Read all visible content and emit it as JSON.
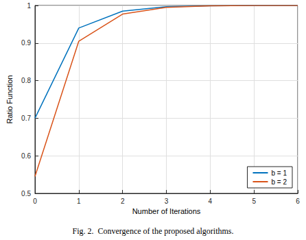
{
  "chart_data": {
    "type": "line",
    "title": "Fig. 2.  Convergence of the proposed algorithms.",
    "x_label": "Number of Iterations",
    "y_label": "Ratio Function",
    "x": [
      0,
      1,
      2,
      3,
      4,
      5,
      6
    ],
    "series": [
      {
        "name": "b = 1",
        "color": "#0072bd",
        "values": [
          0.7,
          0.94,
          0.985,
          0.997,
          0.999,
          1.0,
          1.0
        ]
      },
      {
        "name": "b = 2",
        "color": "#d95319",
        "values": [
          0.545,
          0.905,
          0.977,
          0.995,
          0.999,
          1.0,
          1.0
        ]
      }
    ],
    "xlim": [
      0,
      6
    ],
    "xticks": [
      0,
      1,
      2,
      3,
      4,
      5,
      6
    ],
    "ylim": [
      0.5,
      1
    ],
    "yticks": [
      0.5,
      0.6,
      0.7,
      0.8,
      0.9,
      1
    ],
    "grid": true,
    "legend": "lower right"
  }
}
